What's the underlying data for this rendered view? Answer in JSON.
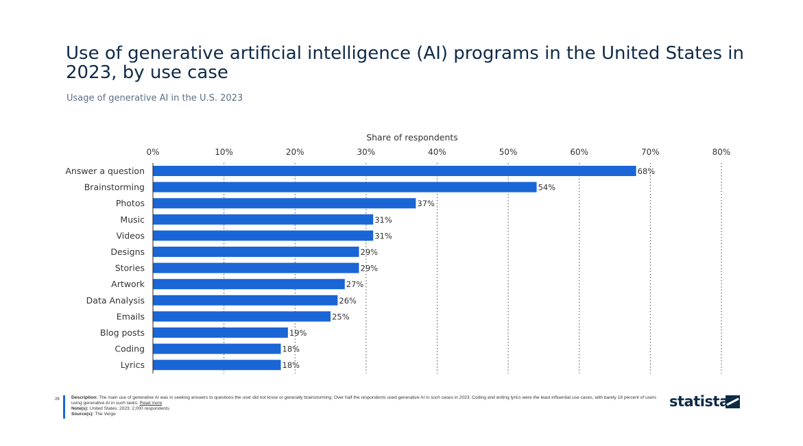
{
  "header": {
    "title": "Use of generative artificial intelligence (AI) programs in the United States in 2023, by use case",
    "subtitle": "Usage of generative AI in the U.S. 2023"
  },
  "chart_data": {
    "type": "bar",
    "orientation": "horizontal",
    "xlabel": "Share of respondents",
    "xlim": [
      0,
      80
    ],
    "x_ticks": [
      "0%",
      "10%",
      "20%",
      "30%",
      "40%",
      "50%",
      "60%",
      "70%",
      "80%"
    ],
    "grid": "vertical dotted",
    "categories": [
      "Answer a question",
      "Brainstorming",
      "Photos",
      "Music",
      "Videos",
      "Designs",
      "Stories",
      "Artwork",
      "Data Analysis",
      "Emails",
      "Blog posts",
      "Coding",
      "Lyrics"
    ],
    "values": [
      68,
      54,
      37,
      31,
      31,
      29,
      29,
      27,
      26,
      25,
      19,
      18,
      18
    ],
    "data_labels": [
      "68%",
      "54%",
      "37%",
      "31%",
      "31%",
      "29%",
      "29%",
      "27%",
      "26%",
      "25%",
      "19%",
      "18%",
      "18%"
    ],
    "bar_color": "#1a66d6"
  },
  "footer": {
    "page_number": "26",
    "description_label": "Description:",
    "description_text": "The main use of generative AI was in seeking answers to questions the user did not know or generally brainstorming. Over half the respondents used generative AI in such cases in 2023. Coding and writing lyrics were the least influential use cases, with barely 18 percent of users using generative AI in such tasks.",
    "read_more": "Read more",
    "notes_label": "Note(s):",
    "notes_text": "United States; 2023; 2,000 respondents",
    "source_label": "Source(s):",
    "source_text": "The Verge"
  },
  "brand": {
    "name": "statista",
    "accent": "#0f2a47"
  }
}
